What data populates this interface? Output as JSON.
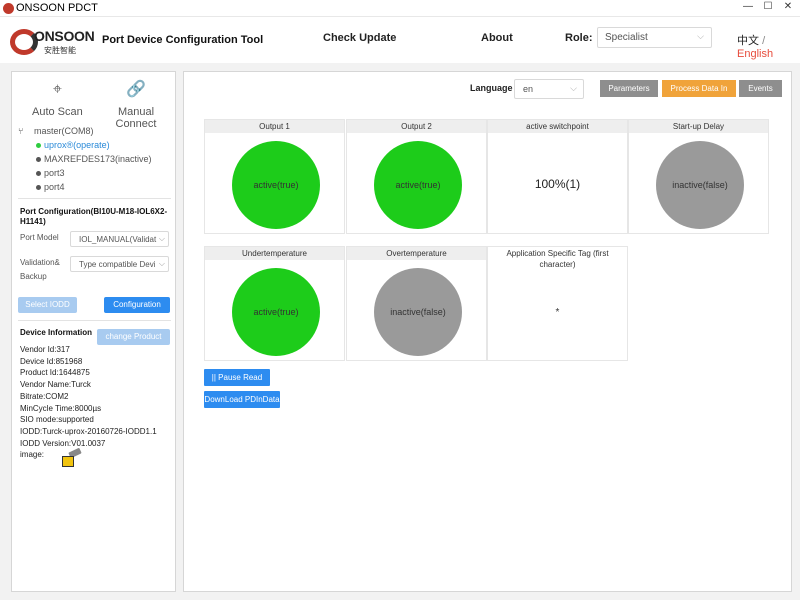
{
  "window": {
    "title": "ONSOON PDCT",
    "minimize": "—",
    "maximize": "☐",
    "close": "✕"
  },
  "header": {
    "brand": "ONSOON",
    "brand_cn": "安胜智能",
    "app_title": "Port Device Configuration Tool",
    "nav": [
      "Check Update",
      "About"
    ],
    "role_label": "Role:",
    "role_value": "Specialist",
    "lang_cn": "中文",
    "lang_sep": "/",
    "lang_en": "English",
    "accent_color": "#e74c3c"
  },
  "sidebar": {
    "tools": [
      {
        "label": "Auto Scan",
        "icon": "crosshair-icon"
      },
      {
        "label": "Manual Connect",
        "icon": "link-icon"
      }
    ],
    "tree": {
      "root": "master(COM8)",
      "children": [
        {
          "label": "uprox®(operate)",
          "active": true
        },
        {
          "label": "MAXREFDES173(inactive)",
          "active": false
        },
        {
          "label": "port3",
          "active": false
        },
        {
          "label": "port4",
          "active": false
        }
      ]
    },
    "port_config": {
      "title": "Port Configuration(BI10U-M18-IOL6X2-H1141)",
      "port_model_label": "Port Model",
      "port_model_value": "IOL_MANUAL(Validat",
      "validation_label_1": "Validation&",
      "validation_label_2": "Backup",
      "validation_value": "Type compatible Devi",
      "select_iodd": "Select IODD",
      "configuration": "Configuration"
    },
    "device_info": {
      "title": "Device Information",
      "change_product": "change Product",
      "lines": [
        "Vendor Id:317",
        "Device Id:851968",
        "Product Id:1644875",
        "Vendor Name:Turck",
        "Bitrate:COM2",
        "MinCycle Time:8000µs",
        "SIO mode:supported",
        "IODD:Turck-uprox-20160726-IODD1.1",
        "IODD Version:V01.0037"
      ],
      "image_label": "image:"
    }
  },
  "content": {
    "language_label": "Language",
    "language_value": "en",
    "tabs": [
      {
        "label": "Parameters",
        "active": false
      },
      {
        "label": "Process Data In",
        "active": true
      },
      {
        "label": "Events",
        "active": false
      }
    ],
    "row1": [
      {
        "title": "Output 1",
        "kind": "circle",
        "state": "green",
        "value": "active(true)"
      },
      {
        "title": "Output 2",
        "kind": "circle",
        "state": "green",
        "value": "active(true)"
      },
      {
        "title": "active switchpoint",
        "kind": "text",
        "value": "100%(1)"
      },
      {
        "title": "Start-up Delay",
        "kind": "circle",
        "state": "grey",
        "value": "inactive(false)"
      }
    ],
    "row2": [
      {
        "title": "Undertemperature",
        "kind": "circle",
        "state": "green",
        "value": "active(true)"
      },
      {
        "title": "Overtemperature",
        "kind": "circle",
        "state": "grey",
        "value": "inactive(false)"
      },
      {
        "title": "Application Specific Tag (first character)",
        "kind": "star",
        "value": "*"
      }
    ],
    "pause_read": "|| Pause Read",
    "download": "DownLoad PDInData",
    "colors": {
      "active": "#1dcc1a",
      "inactive": "#9a9a9a",
      "primary": "#2d8cf0",
      "tab_active": "#f0a33a"
    }
  }
}
